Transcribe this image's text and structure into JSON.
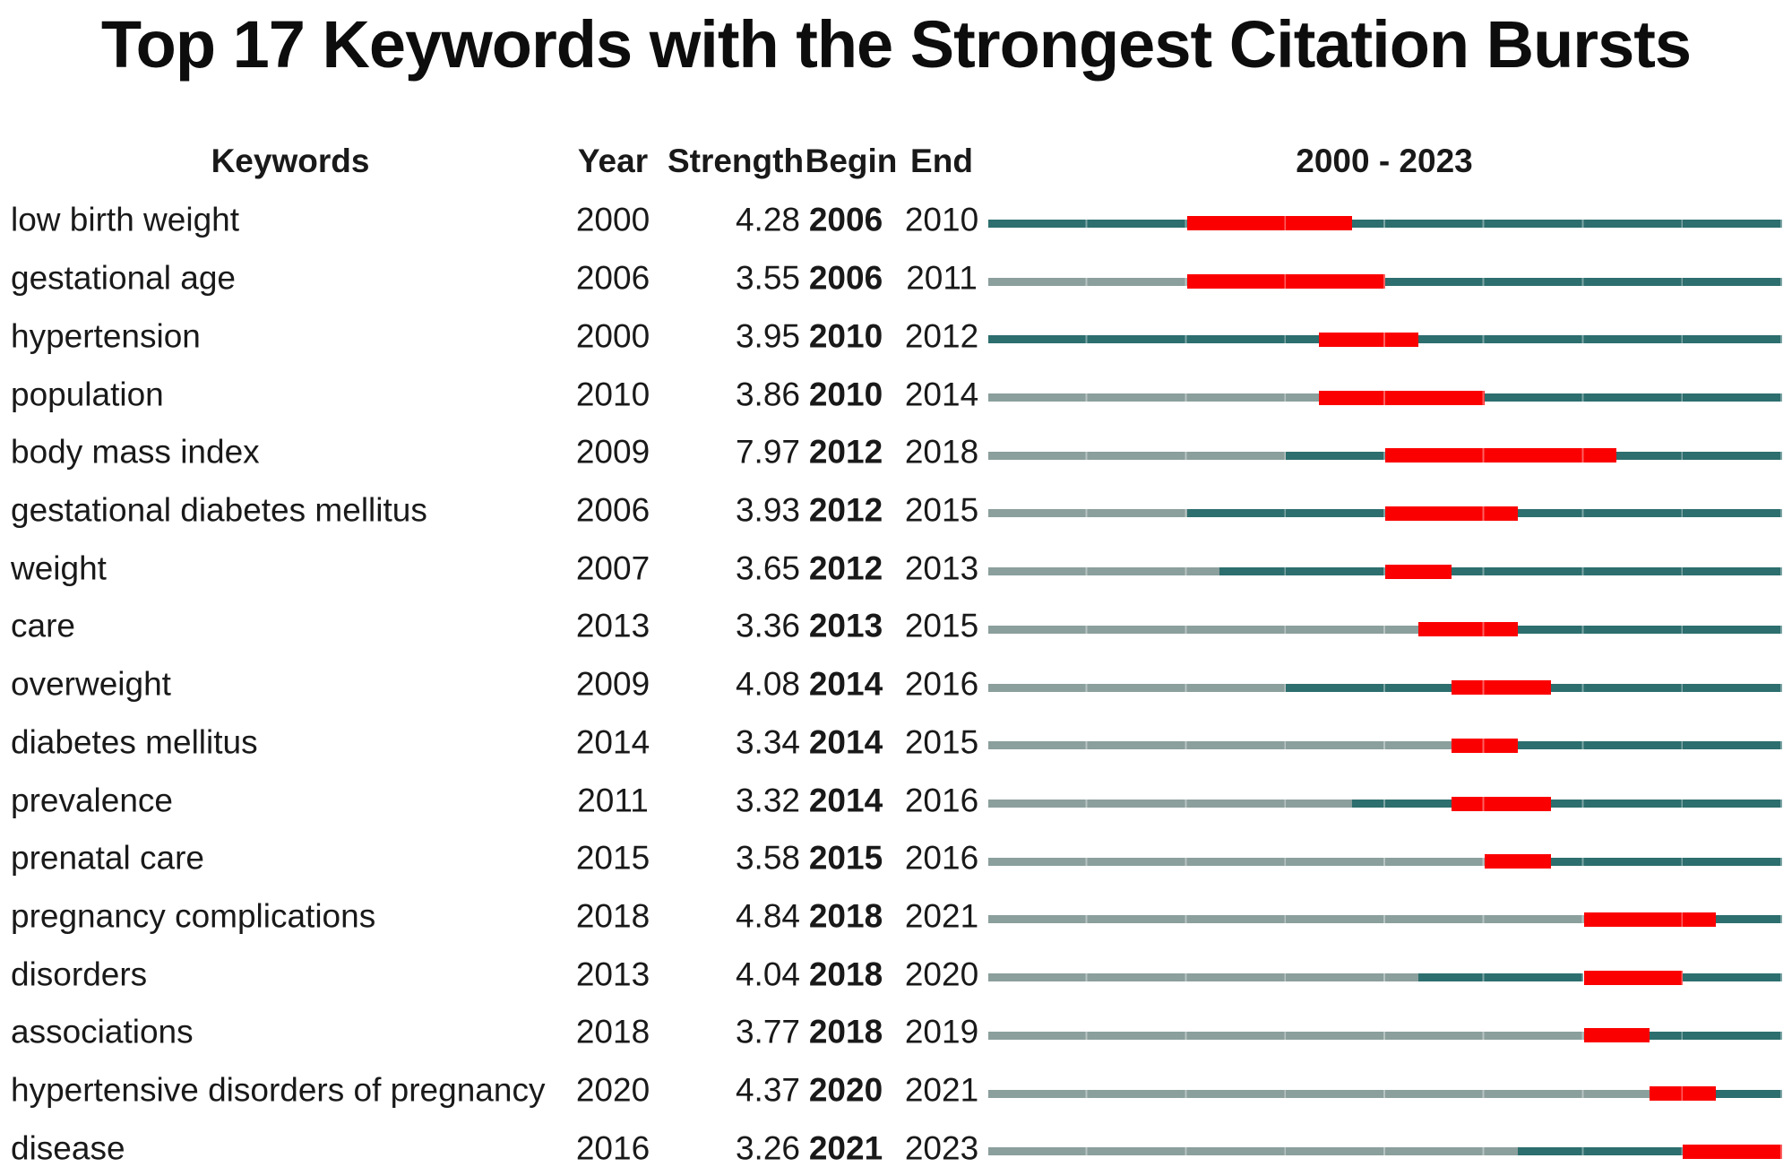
{
  "chart_data": {
    "type": "table",
    "subtype": "citation-burst-timeline",
    "title": "Top 17 Keywords with the Strongest Citation Bursts",
    "columns": [
      "Keywords",
      "Year",
      "Strength",
      "Begin",
      "End",
      "2000 - 2023"
    ],
    "x_range": [
      2000,
      2023
    ],
    "legend": {
      "before_appearance_color": "#8B9F9C",
      "active_period_color": "#2D6E6E",
      "burst_period_color": "#FB0000"
    },
    "rows": [
      {
        "keyword": "low birth weight",
        "year": "2000",
        "strength": "4.28",
        "begin": "2006",
        "end": "2010"
      },
      {
        "keyword": "gestational age",
        "year": "2006",
        "strength": "3.55",
        "begin": "2006",
        "end": "2011"
      },
      {
        "keyword": "hypertension",
        "year": "2000",
        "strength": "3.95",
        "begin": "2010",
        "end": "2012"
      },
      {
        "keyword": "population",
        "year": "2010",
        "strength": "3.86",
        "begin": "2010",
        "end": "2014"
      },
      {
        "keyword": "body mass index",
        "year": "2009",
        "strength": "7.97",
        "begin": "2012",
        "end": "2018"
      },
      {
        "keyword": "gestational diabetes mellitus",
        "year": "2006",
        "strength": "3.93",
        "begin": "2012",
        "end": "2015"
      },
      {
        "keyword": "weight",
        "year": "2007",
        "strength": "3.65",
        "begin": "2012",
        "end": "2013"
      },
      {
        "keyword": "care",
        "year": "2013",
        "strength": "3.36",
        "begin": "2013",
        "end": "2015"
      },
      {
        "keyword": "overweight",
        "year": "2009",
        "strength": "4.08",
        "begin": "2014",
        "end": "2016"
      },
      {
        "keyword": "diabetes mellitus",
        "year": "2014",
        "strength": "3.34",
        "begin": "2014",
        "end": "2015"
      },
      {
        "keyword": "prevalence",
        "year": "2011",
        "strength": "3.32",
        "begin": "2014",
        "end": "2016"
      },
      {
        "keyword": "prenatal care",
        "year": "2015",
        "strength": "3.58",
        "begin": "2015",
        "end": "2016"
      },
      {
        "keyword": "pregnancy complications",
        "year": "2018",
        "strength": "4.84",
        "begin": "2018",
        "end": "2021"
      },
      {
        "keyword": "disorders",
        "year": "2013",
        "strength": "4.04",
        "begin": "2018",
        "end": "2020"
      },
      {
        "keyword": "associations",
        "year": "2018",
        "strength": "3.77",
        "begin": "2018",
        "end": "2019"
      },
      {
        "keyword": "hypertensive disorders of pregnancy",
        "year": "2020",
        "strength": "4.37",
        "begin": "2020",
        "end": "2021"
      },
      {
        "keyword": "disease",
        "year": "2016",
        "strength": "3.26",
        "begin": "2021",
        "end": "2023"
      }
    ]
  }
}
